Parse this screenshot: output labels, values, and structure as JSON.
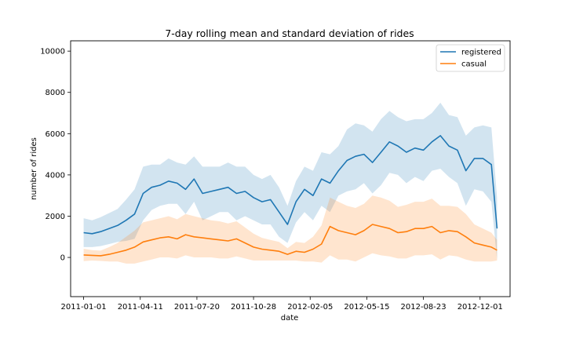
{
  "chart_data": {
    "type": "line",
    "title": "7-day rolling mean and standard deviation of rides",
    "xlabel": "date",
    "ylabel": "number of rides",
    "xlim": [
      "2010-12-09",
      "2013-01-23"
    ],
    "ylim": [
      -1900,
      10500
    ],
    "x_ticks": [
      "2011-01-01",
      "2011-04-11",
      "2011-07-20",
      "2011-10-28",
      "2012-02-05",
      "2012-05-15",
      "2012-08-23",
      "2012-12-01"
    ],
    "y_ticks": [
      0,
      2000,
      4000,
      6000,
      8000,
      10000
    ],
    "y_tick_labels": [
      "0",
      "2000",
      "4000",
      "6000",
      "8000",
      "10000"
    ],
    "legend_position": "top-right",
    "grid": false,
    "series": [
      {
        "name": "registered",
        "color": "#1f77b4",
        "band_color": "#1f77b4",
        "x": [
          "2011-01-01",
          "2011-01-16",
          "2011-01-31",
          "2011-02-15",
          "2011-03-02",
          "2011-03-17",
          "2011-04-01",
          "2011-04-16",
          "2011-05-01",
          "2011-05-16",
          "2011-05-31",
          "2011-06-15",
          "2011-06-30",
          "2011-07-15",
          "2011-07-30",
          "2011-08-14",
          "2011-08-29",
          "2011-09-13",
          "2011-09-28",
          "2011-10-13",
          "2011-10-28",
          "2011-11-12",
          "2011-11-27",
          "2011-12-12",
          "2011-12-27",
          "2012-01-11",
          "2012-01-26",
          "2012-02-10",
          "2012-02-25",
          "2012-03-11",
          "2012-03-26",
          "2012-04-10",
          "2012-04-25",
          "2012-05-10",
          "2012-05-25",
          "2012-06-09",
          "2012-06-24",
          "2012-07-09",
          "2012-07-24",
          "2012-08-08",
          "2012-08-23",
          "2012-09-07",
          "2012-09-22",
          "2012-10-07",
          "2012-10-22",
          "2012-11-06",
          "2012-11-21",
          "2012-12-06",
          "2012-12-21",
          "2012-12-31"
        ],
        "mean": [
          1200,
          1150,
          1250,
          1400,
          1550,
          1800,
          2100,
          3100,
          3400,
          3500,
          3700,
          3600,
          3300,
          3800,
          3100,
          3200,
          3300,
          3400,
          3100,
          3200,
          2900,
          2700,
          2800,
          2200,
          1600,
          2700,
          3300,
          3000,
          3800,
          3600,
          4200,
          4700,
          4900,
          5000,
          4600,
          5100,
          5600,
          5400,
          5100,
          5300,
          5200,
          5600,
          5900,
          5400,
          5200,
          4200,
          4800,
          4800,
          4500,
          1400
        ],
        "std": [
          700,
          650,
          700,
          750,
          800,
          1000,
          1200,
          1300,
          1100,
          1000,
          1100,
          1000,
          1200,
          1100,
          1300,
          1200,
          1100,
          1200,
          1300,
          1200,
          1100,
          1100,
          1200,
          1200,
          900,
          1000,
          1100,
          1200,
          1300,
          1400,
          1200,
          1500,
          1600,
          1400,
          1500,
          1600,
          1500,
          1400,
          1500,
          1400,
          1500,
          1400,
          1600,
          1500,
          1600,
          1700,
          1500,
          1600,
          1800,
          1500
        ]
      },
      {
        "name": "casual",
        "color": "#ff7f0e",
        "band_color": "#ff7f0e",
        "x": [
          "2011-01-01",
          "2011-01-16",
          "2011-01-31",
          "2011-02-15",
          "2011-03-02",
          "2011-03-17",
          "2011-04-01",
          "2011-04-16",
          "2011-05-01",
          "2011-05-16",
          "2011-05-31",
          "2011-06-15",
          "2011-06-30",
          "2011-07-15",
          "2011-07-30",
          "2011-08-14",
          "2011-08-29",
          "2011-09-13",
          "2011-09-28",
          "2011-10-13",
          "2011-10-28",
          "2011-11-12",
          "2011-11-27",
          "2011-12-12",
          "2011-12-27",
          "2012-01-11",
          "2012-01-26",
          "2012-02-10",
          "2012-02-25",
          "2012-03-11",
          "2012-03-26",
          "2012-04-10",
          "2012-04-25",
          "2012-05-10",
          "2012-05-25",
          "2012-06-09",
          "2012-06-24",
          "2012-07-09",
          "2012-07-24",
          "2012-08-08",
          "2012-08-23",
          "2012-09-07",
          "2012-09-22",
          "2012-10-07",
          "2012-10-22",
          "2012-11-06",
          "2012-11-21",
          "2012-12-06",
          "2012-12-21",
          "2012-12-31"
        ],
        "mean": [
          120,
          100,
          80,
          150,
          250,
          350,
          500,
          750,
          850,
          950,
          1000,
          900,
          1100,
          1000,
          950,
          900,
          850,
          800,
          900,
          700,
          500,
          400,
          350,
          300,
          150,
          300,
          250,
          400,
          650,
          1500,
          1300,
          1200,
          1100,
          1300,
          1600,
          1500,
          1400,
          1200,
          1250,
          1400,
          1400,
          1500,
          1200,
          1300,
          1250,
          1000,
          700,
          600,
          500,
          350
        ],
        "std": [
          300,
          250,
          250,
          350,
          450,
          650,
          800,
          950,
          950,
          950,
          1000,
          950,
          1000,
          1000,
          950,
          900,
          900,
          850,
          850,
          750,
          650,
          550,
          500,
          450,
          300,
          450,
          450,
          600,
          900,
          1400,
          1400,
          1300,
          1300,
          1300,
          1400,
          1400,
          1350,
          1250,
          1300,
          1300,
          1300,
          1350,
          1300,
          1200,
          1200,
          1100,
          900,
          800,
          700,
          500
        ]
      }
    ]
  }
}
